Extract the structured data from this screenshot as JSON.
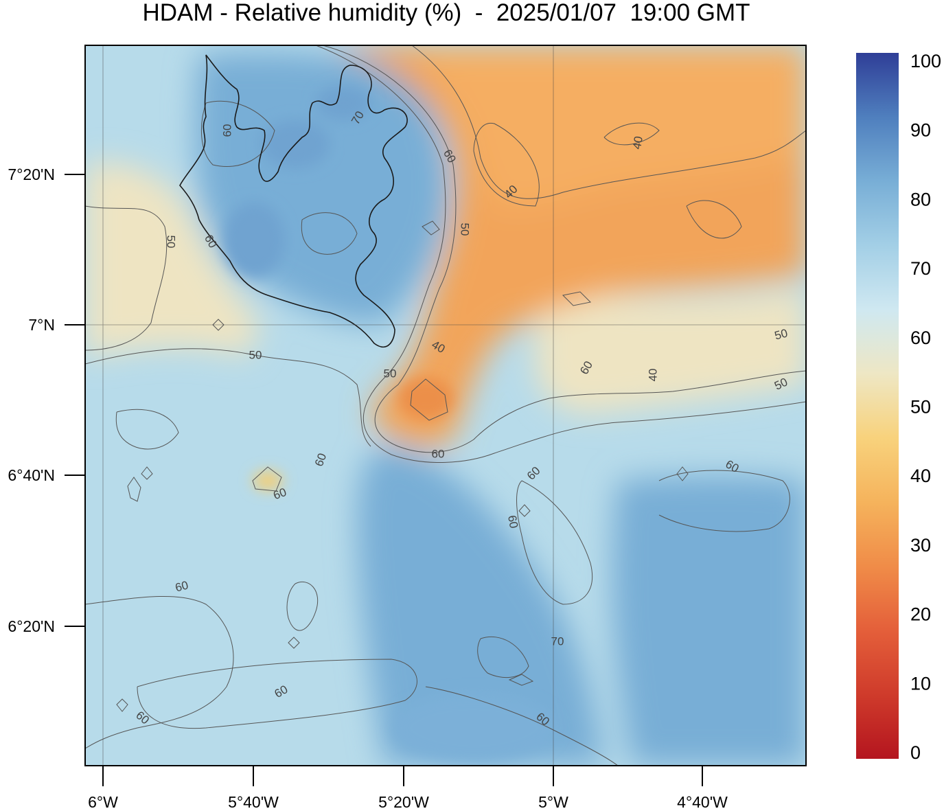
{
  "title": "HDAM - Relative humidity (%)  -  2025/01/07  19:00 GMT",
  "map": {
    "variable": "Relative humidity (%)",
    "longitude_ticks": [
      "6°W",
      "5°40'W",
      "5°20'W",
      "5°W",
      "4°40'W"
    ],
    "latitude_ticks": [
      "7°20'N",
      "7°N",
      "6°40'N",
      "6°20'N"
    ],
    "contour_labels": [
      "70",
      "60",
      "60",
      "50",
      "60",
      "40",
      "50",
      "40",
      "40",
      "50",
      "60",
      "40",
      "50",
      "50",
      "50",
      "60",
      "60",
      "60",
      "60",
      "60",
      "60",
      "60",
      "60",
      "60",
      "60",
      "70"
    ],
    "colors": {
      "dry": "#f2a45a",
      "mid": "#eee4c2",
      "moist": "#b7dbea",
      "wet": "#78aed6",
      "contour": "#555555",
      "coast": "#1a1a1a"
    }
  },
  "colorbar": {
    "tick_labels": [
      "100",
      "90",
      "80",
      "70",
      "60",
      "50",
      "40",
      "30",
      "20",
      "10",
      "0"
    ],
    "stops": [
      "#b4151f",
      "#cf3b2b",
      "#e45f3a",
      "#f08c48",
      "#f5b35c",
      "#f8d27c",
      "#eee7c4",
      "#cfe8f1",
      "#a3cfe6",
      "#78aed6",
      "#4f7fbe",
      "#2f3e97"
    ]
  }
}
